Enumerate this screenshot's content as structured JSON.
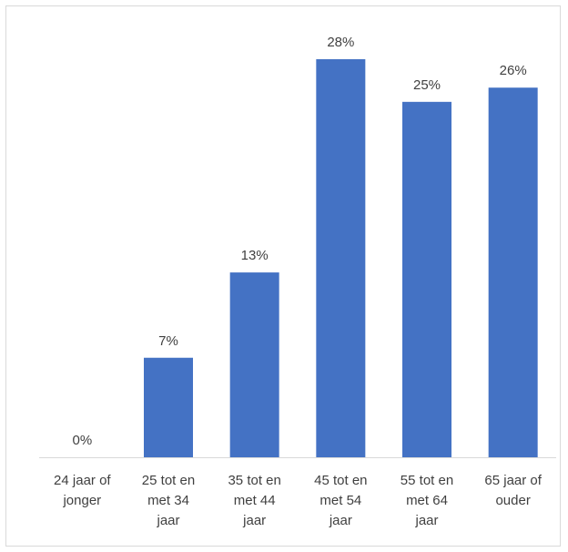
{
  "chart_data": {
    "type": "bar",
    "title": "",
    "xlabel": "",
    "ylabel": "",
    "categories": [
      [
        "24 jaar of",
        "jonger"
      ],
      [
        "25 tot en",
        "met 34",
        "jaar"
      ],
      [
        "35 tot en",
        "met 44",
        "jaar"
      ],
      [
        "45 tot en",
        "met 54",
        "jaar"
      ],
      [
        "55 tot en",
        "met 64",
        "jaar"
      ],
      [
        "65 jaar of",
        "ouder"
      ]
    ],
    "values": [
      0,
      7,
      13,
      28,
      25,
      26
    ],
    "data_labels": [
      "0%",
      "7%",
      "13%",
      "28%",
      "25%",
      "26%"
    ],
    "ylim": [
      0,
      28
    ],
    "grid": false,
    "bar_color": "#4472C4",
    "axis_color": "#d9d9d9"
  }
}
